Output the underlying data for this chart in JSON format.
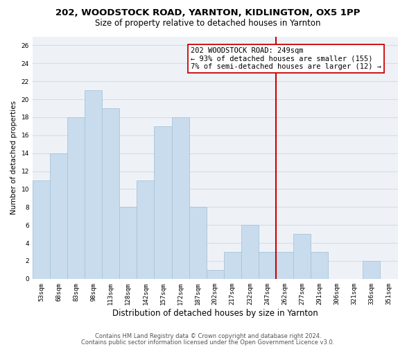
{
  "title1": "202, WOODSTOCK ROAD, YARNTON, KIDLINGTON, OX5 1PP",
  "title2": "Size of property relative to detached houses in Yarnton",
  "xlabel": "Distribution of detached houses by size in Yarnton",
  "ylabel": "Number of detached properties",
  "bin_labels": [
    "53sqm",
    "68sqm",
    "83sqm",
    "98sqm",
    "113sqm",
    "128sqm",
    "142sqm",
    "157sqm",
    "172sqm",
    "187sqm",
    "202sqm",
    "217sqm",
    "232sqm",
    "247sqm",
    "262sqm",
    "277sqm",
    "291sqm",
    "306sqm",
    "321sqm",
    "336sqm",
    "351sqm"
  ],
  "bar_values": [
    11,
    14,
    18,
    21,
    19,
    8,
    11,
    17,
    18,
    8,
    1,
    3,
    6,
    3,
    3,
    5,
    3,
    0,
    0,
    2,
    0
  ],
  "bar_color": "#c8dced",
  "bar_edge_color": "#a8c4d8",
  "vline_x_index": 13.5,
  "vline_color": "#cc0000",
  "annotation_line1": "202 WOODSTOCK ROAD: 249sqm",
  "annotation_line2": "← 93% of detached houses are smaller (155)",
  "annotation_line3": "7% of semi-detached houses are larger (12) →",
  "ylim": [
    0,
    27
  ],
  "yticks": [
    0,
    2,
    4,
    6,
    8,
    10,
    12,
    14,
    16,
    18,
    20,
    22,
    24,
    26
  ],
  "grid_color": "#d4dde8",
  "background_color": "#eef2f7",
  "footnote1": "Contains HM Land Registry data © Crown copyright and database right 2024.",
  "footnote2": "Contains public sector information licensed under the Open Government Licence v3.0.",
  "title1_fontsize": 9.5,
  "title2_fontsize": 8.5,
  "xlabel_fontsize": 8.5,
  "ylabel_fontsize": 7.5,
  "tick_fontsize": 6.5,
  "annotation_fontsize": 7.5,
  "footnote_fontsize": 6.0
}
